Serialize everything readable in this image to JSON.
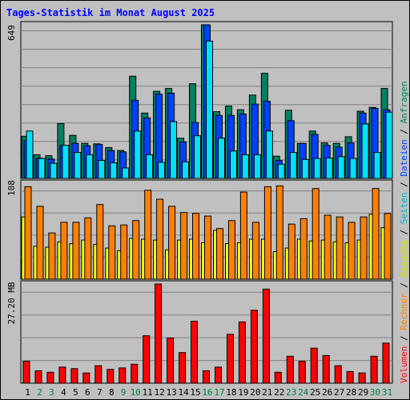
{
  "title": "Tages-Statistik im Monat August 2025",
  "colors": {
    "anfragen": "#008060",
    "dateien": "#0040ff",
    "seiten": "#00e0ff",
    "besuche": "#ffff00",
    "rechner": "#ff8000",
    "volumen": "#ff0000",
    "weekday_label": "#000000",
    "weekend_label": "#008040"
  },
  "legend": {
    "volumen": "Volumen",
    "sep1": " / ",
    "rechner": "Rechner",
    "sep2": " / ",
    "besuche": "Besuche",
    "sep3": " / ",
    "seiten": "Seiten",
    "sep4": " / ",
    "dateien": "Dateien",
    "sep5": " / ",
    "anfragen": "Anfragen"
  },
  "chart_data": [
    {
      "type": "bar",
      "panel": "top",
      "max_label": "649",
      "ylim": [
        0,
        649
      ],
      "categories": [
        "1",
        "2",
        "3",
        "4",
        "5",
        "6",
        "7",
        "8",
        "9",
        "10",
        "11",
        "12",
        "13",
        "14",
        "15",
        "16",
        "17",
        "18",
        "19",
        "20",
        "21",
        "22",
        "23",
        "24",
        "25",
        "26",
        "27",
        "28",
        "29",
        "30",
        "31"
      ],
      "series": [
        {
          "name": "Anfragen",
          "values": [
            178,
            100,
            96,
            232,
            182,
            148,
            146,
            130,
            118,
            432,
            276,
            368,
            380,
            170,
            400,
            649,
            282,
            306,
            290,
            352,
            444,
            94,
            288,
            148,
            200,
            150,
            148,
            176,
            284,
            300,
            380
          ]
        },
        {
          "name": "Dateien",
          "values": [
            160,
            86,
            82,
            140,
            148,
            138,
            144,
            118,
            112,
            330,
            256,
            356,
            360,
            154,
            236,
            649,
            266,
            266,
            272,
            314,
            326,
            76,
            244,
            148,
            186,
            140,
            132,
            150,
            276,
            296,
            290
          ]
        },
        {
          "name": "Seiten",
          "values": [
            200,
            84,
            64,
            140,
            110,
            100,
            76,
            66,
            44,
            200,
            100,
            68,
            240,
            70,
            180,
            580,
            170,
            116,
            100,
            100,
            200,
            60,
            110,
            80,
            84,
            86,
            92,
            84,
            230,
            110,
            280
          ]
        }
      ]
    },
    {
      "type": "bar",
      "panel": "middle",
      "max_label": "108",
      "ylim": [
        0,
        108
      ],
      "categories": [
        "1",
        "2",
        "3",
        "4",
        "5",
        "6",
        "7",
        "8",
        "9",
        "10",
        "11",
        "12",
        "13",
        "14",
        "15",
        "16",
        "17",
        "18",
        "19",
        "20",
        "21",
        "22",
        "23",
        "24",
        "25",
        "26",
        "27",
        "28",
        "29",
        "30",
        "31"
      ],
      "series": [
        {
          "name": "Besuche",
          "values": [
            70,
            37,
            36,
            42,
            40,
            44,
            39,
            35,
            32,
            46,
            45,
            44,
            33,
            44,
            45,
            41,
            55,
            40,
            41,
            45,
            45,
            31,
            35,
            45,
            43,
            44,
            42,
            41,
            44,
            73,
            58
          ]
        },
        {
          "name": "Rechner",
          "values": [
            104,
            82,
            52,
            64,
            64,
            69,
            84,
            60,
            61,
            66,
            100,
            90,
            82,
            75,
            74,
            71,
            57,
            66,
            98,
            64,
            104,
            105,
            62,
            68,
            102,
            72,
            70,
            64,
            70,
            102,
            74
          ]
        }
      ]
    },
    {
      "type": "bar",
      "panel": "bottom",
      "max_label": "27.20 MB",
      "ylim": [
        0,
        27.2
      ],
      "unit": "MB",
      "categories": [
        "1",
        "2",
        "3",
        "4",
        "5",
        "6",
        "7",
        "8",
        "9",
        "10",
        "11",
        "12",
        "13",
        "14",
        "15",
        "16",
        "17",
        "18",
        "19",
        "20",
        "21",
        "22",
        "23",
        "24",
        "25",
        "26",
        "27",
        "28",
        "29",
        "30",
        "31"
      ],
      "series": [
        {
          "name": "Volumen",
          "values": [
            6.0,
            3.4,
            3.0,
            4.4,
            4.0,
            2.8,
            4.8,
            3.8,
            4.2,
            5.2,
            13.0,
            27.2,
            12.4,
            8.4,
            17.0,
            3.4,
            4.4,
            13.4,
            16.8,
            20.0,
            25.8,
            3.0,
            7.4,
            6.0,
            9.6,
            7.6,
            4.8,
            3.2,
            2.8,
            7.4,
            11.0
          ]
        }
      ]
    }
  ],
  "weekend_days": [
    "2",
    "3",
    "9",
    "10",
    "16",
    "17",
    "23",
    "24",
    "30",
    "31"
  ]
}
